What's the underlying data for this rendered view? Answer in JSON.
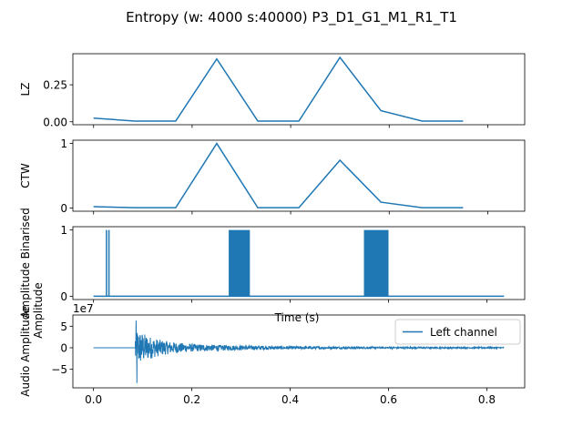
{
  "title": "Entropy (w: 4000 s:40000) P3_D1_G1_M1_R1_T1",
  "colors": {
    "series": "#1f77b4",
    "axis": "#000000",
    "background": "#ffffff"
  },
  "chart_data": [
    {
      "type": "line",
      "ylabel": "LZ",
      "x_data": [
        0.0,
        0.0833,
        0.1667,
        0.25,
        0.3333,
        0.4167,
        0.5,
        0.5833,
        0.6667,
        0.75
      ],
      "values": [
        0.025,
        0.005,
        0.005,
        0.425,
        0.005,
        0.005,
        0.435,
        0.075,
        0.005,
        0.005
      ],
      "xlim": [
        -0.042,
        0.875
      ],
      "ylim": [
        -0.02,
        0.46
      ],
      "yticks": [
        0.0,
        0.25
      ],
      "ytick_labels": [
        "0.00",
        "0.25"
      ],
      "xticks": [
        0.0,
        0.2,
        0.4,
        0.6,
        0.8
      ],
      "show_xtick_labels": false,
      "grid": false
    },
    {
      "type": "line",
      "ylabel": "CTW",
      "x_data": [
        0.0,
        0.0833,
        0.1667,
        0.25,
        0.3333,
        0.4167,
        0.5,
        0.5833,
        0.6667,
        0.75
      ],
      "values": [
        0.02,
        0.005,
        0.005,
        1.0,
        0.005,
        0.005,
        0.74,
        0.09,
        0.005,
        0.005
      ],
      "xlim": [
        -0.042,
        0.875
      ],
      "ylim": [
        -0.05,
        1.05
      ],
      "yticks": [
        0,
        1
      ],
      "ytick_labels": [
        "0",
        "1"
      ],
      "xticks": [
        0.0,
        0.2,
        0.4,
        0.6,
        0.8
      ],
      "show_xtick_labels": false,
      "grid": false
    },
    {
      "type": "line",
      "ylabel": "Amplitude Binarised",
      "xlabel": "Time (s)",
      "x_range": [
        0.0,
        0.835
      ],
      "baseline": 0,
      "high_value": 1,
      "high_bursts": [
        [
          0.025,
          0.026
        ],
        [
          0.03,
          0.031
        ],
        [
          0.275,
          0.318
        ],
        [
          0.55,
          0.6
        ]
      ],
      "xlim": [
        -0.042,
        0.877
      ],
      "ylim": [
        -0.05,
        1.05
      ],
      "yticks": [
        0,
        1
      ],
      "ytick_labels": [
        "0",
        "1"
      ],
      "xticks": [
        0.0,
        0.2,
        0.4,
        0.6,
        0.8
      ],
      "show_xtick_labels": false,
      "grid": false
    },
    {
      "type": "line",
      "ylabel": "Audio Amplitude",
      "ylabel2": "Amplitude",
      "offset_text": "1e7",
      "legend": {
        "entries": [
          "Left channel"
        ],
        "position": "upper-right"
      },
      "x_range": [
        0.0,
        0.835
      ],
      "onset": 0.085,
      "peak_max": 6.3,
      "peak_min": -8.2,
      "xlim": [
        -0.042,
        0.877
      ],
      "ylim": [
        -9.3,
        7.6
      ],
      "yticks": [
        5,
        0,
        -5
      ],
      "ytick_labels": [
        "5",
        "0",
        "−5"
      ],
      "xticks": [
        0.0,
        0.2,
        0.4,
        0.6,
        0.8
      ],
      "xtick_labels": [
        "0.0",
        "0.2",
        "0.4",
        "0.6",
        "0.8"
      ],
      "grid": false
    }
  ]
}
